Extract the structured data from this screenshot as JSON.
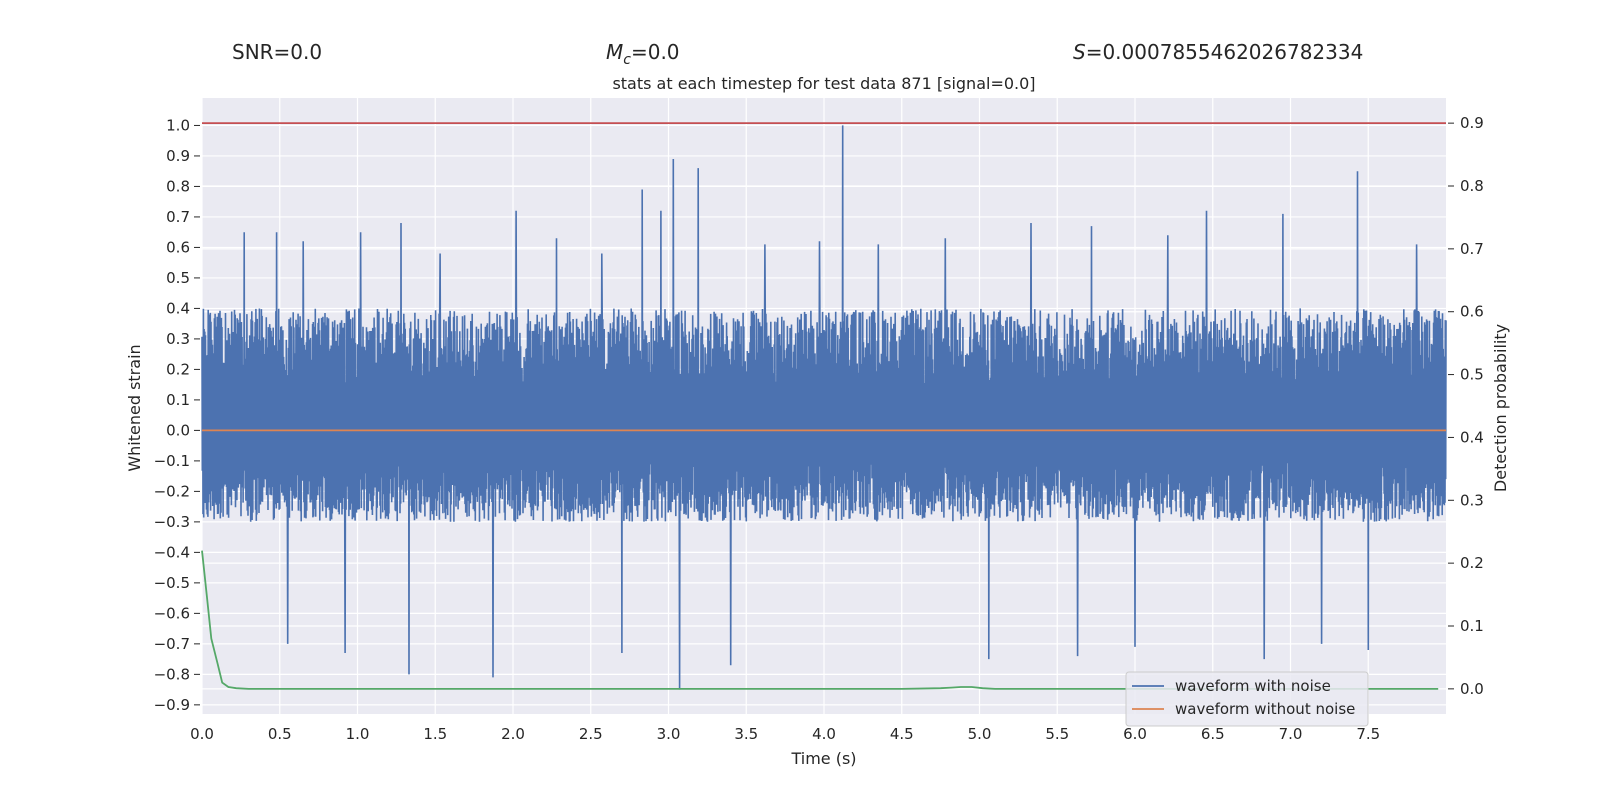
{
  "header": {
    "snr": "SNR=0.0",
    "mc_symbol": "M",
    "mc_sub": "c",
    "mc_rest": "=0.0",
    "s_symbol": "S",
    "s_rest": "=0.0007855462026782334"
  },
  "chart_data": {
    "type": "line",
    "title": "stats at each timestep for test data 871 [signal=0.0]",
    "xlabel": "Time (s)",
    "ylabel": "Whitened strain",
    "y2label": "Detection probability",
    "xlim": [
      0.0,
      8.0
    ],
    "ylim": [
      -0.93,
      1.09
    ],
    "y2lim": [
      -0.04,
      0.94
    ],
    "xticks": [
      0.0,
      0.5,
      1.0,
      1.5,
      2.0,
      2.5,
      3.0,
      3.5,
      4.0,
      4.5,
      5.0,
      5.5,
      6.0,
      6.5,
      7.0,
      7.5
    ],
    "xtick_labels": [
      "0.0",
      "0.5",
      "1.0",
      "1.5",
      "2.0",
      "2.5",
      "3.0",
      "3.5",
      "4.0",
      "4.5",
      "5.0",
      "5.5",
      "6.0",
      "6.5",
      "7.0",
      "7.5"
    ],
    "yticks": [
      1.0,
      0.9,
      0.8,
      0.7,
      0.6,
      0.5,
      0.4,
      0.3,
      0.2,
      0.1,
      0.0,
      -0.1,
      -0.2,
      -0.3,
      -0.4,
      -0.5,
      -0.6,
      -0.7,
      -0.8,
      -0.9
    ],
    "ytick_labels": [
      "1.0",
      "0.9",
      "0.8",
      "0.7",
      "0.6",
      "0.5",
      "0.4",
      "0.3",
      "0.2",
      "0.1",
      "0.0",
      "−0.1",
      "−0.2",
      "−0.3",
      "−0.4",
      "−0.5",
      "−0.6",
      "−0.7",
      "−0.8",
      "−0.9"
    ],
    "y2ticks": [
      0.9,
      0.8,
      0.7,
      0.6,
      0.5,
      0.4,
      0.3,
      0.2,
      0.1,
      0.0
    ],
    "y2tick_labels": [
      "0.9",
      "0.8",
      "0.7",
      "0.6",
      "0.5",
      "0.4",
      "0.3",
      "0.2",
      "0.1",
      "0.0"
    ],
    "grid": true,
    "legend_position": "bottom-right",
    "series": [
      {
        "name": "waveform with noise",
        "axis": "left",
        "color": "#4c72b0",
        "kind": "noise",
        "envelope": {
          "typical_range": [
            -0.3,
            0.4
          ],
          "max": 1.0,
          "max_at_time": 4.12,
          "min": -0.85,
          "min_at_time": 3.07
        },
        "peaks": [
          {
            "t": 0.27,
            "v": 0.65
          },
          {
            "t": 0.48,
            "v": 0.65
          },
          {
            "t": 0.65,
            "v": 0.62
          },
          {
            "t": 1.02,
            "v": 0.65
          },
          {
            "t": 1.28,
            "v": 0.68
          },
          {
            "t": 1.53,
            "v": 0.58
          },
          {
            "t": 2.02,
            "v": 0.72
          },
          {
            "t": 2.28,
            "v": 0.63
          },
          {
            "t": 2.57,
            "v": 0.58
          },
          {
            "t": 2.83,
            "v": 0.79
          },
          {
            "t": 2.95,
            "v": 0.72
          },
          {
            "t": 3.03,
            "v": 0.89
          },
          {
            "t": 3.19,
            "v": 0.86
          },
          {
            "t": 3.62,
            "v": 0.61
          },
          {
            "t": 3.97,
            "v": 0.62
          },
          {
            "t": 4.12,
            "v": 1.0
          },
          {
            "t": 4.35,
            "v": 0.61
          },
          {
            "t": 4.78,
            "v": 0.63
          },
          {
            "t": 5.33,
            "v": 0.68
          },
          {
            "t": 5.72,
            "v": 0.67
          },
          {
            "t": 6.21,
            "v": 0.64
          },
          {
            "t": 6.46,
            "v": 0.72
          },
          {
            "t": 6.95,
            "v": 0.71
          },
          {
            "t": 7.43,
            "v": 0.85
          },
          {
            "t": 7.81,
            "v": 0.61
          }
        ],
        "troughs": [
          {
            "t": 0.55,
            "v": -0.7
          },
          {
            "t": 0.92,
            "v": -0.73
          },
          {
            "t": 1.33,
            "v": -0.8
          },
          {
            "t": 1.87,
            "v": -0.81
          },
          {
            "t": 2.7,
            "v": -0.73
          },
          {
            "t": 3.07,
            "v": -0.85
          },
          {
            "t": 3.4,
            "v": -0.77
          },
          {
            "t": 5.06,
            "v": -0.75
          },
          {
            "t": 5.63,
            "v": -0.74
          },
          {
            "t": 6.0,
            "v": -0.71
          },
          {
            "t": 6.83,
            "v": -0.75
          },
          {
            "t": 7.2,
            "v": -0.7
          },
          {
            "t": 7.5,
            "v": -0.72
          }
        ]
      },
      {
        "name": "waveform without noise",
        "axis": "left",
        "color": "#dd8452",
        "x": [
          0.0,
          8.0
        ],
        "y": [
          0.0,
          0.0
        ]
      },
      {
        "axis": "right",
        "color": "#55a868",
        "x": [
          0.0,
          0.03,
          0.06,
          0.1,
          0.13,
          0.17,
          0.22,
          0.3,
          0.5,
          1.0,
          2.0,
          3.0,
          4.0,
          4.5,
          4.75,
          4.82,
          4.88,
          4.95,
          5.02,
          5.1,
          5.3,
          6.0,
          7.0,
          7.95
        ],
        "y": [
          0.22,
          0.15,
          0.08,
          0.04,
          0.01,
          0.003,
          0.001,
          0.0,
          0.0,
          0.0,
          0.0,
          0.0,
          0.0,
          0.0,
          0.001,
          0.002,
          0.003,
          0.003,
          0.001,
          0.0,
          0.0,
          0.0,
          0.0,
          0.0
        ]
      }
    ],
    "threshold_line": {
      "axis": "right",
      "value": 0.9,
      "color": "#c44e52"
    }
  }
}
